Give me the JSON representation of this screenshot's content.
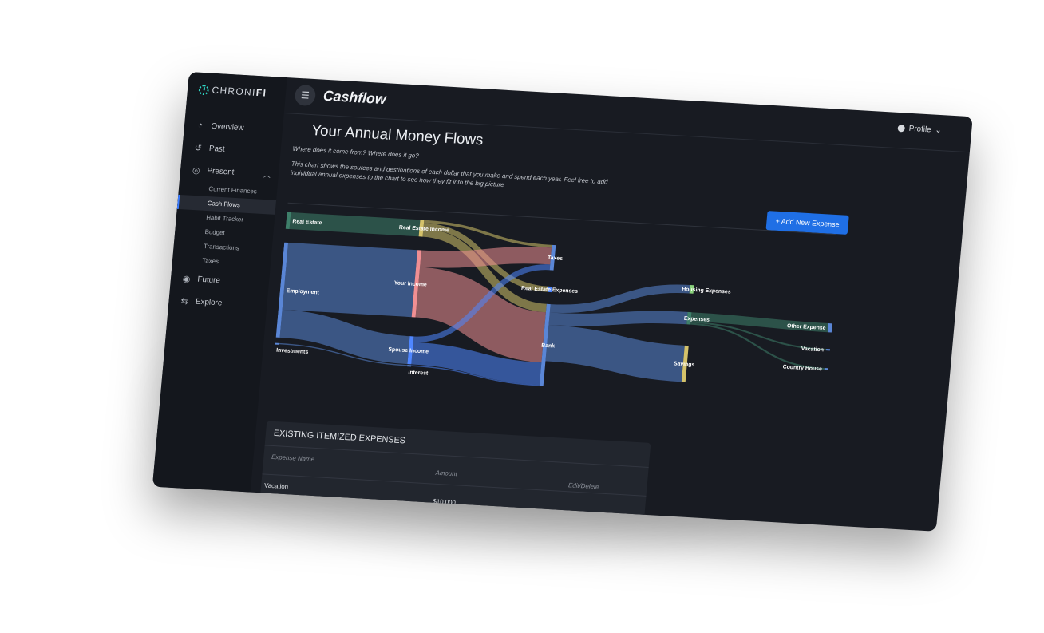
{
  "app": {
    "brand_prefix": "CHRONI",
    "brand_suffix": "FI",
    "page_title": "Cashflow",
    "profile_label": "Profile"
  },
  "sidebar": {
    "items": [
      {
        "label": "Overview",
        "icon": "gauge-icon"
      },
      {
        "label": "Past",
        "icon": "history-icon"
      },
      {
        "label": "Present",
        "icon": "location-pin-icon",
        "expanded": true,
        "subitems": [
          {
            "label": "Current Finances"
          },
          {
            "label": "Cash Flows",
            "active": true
          },
          {
            "label": "Habit Tracker"
          },
          {
            "label": "Budget"
          },
          {
            "label": "Transactions"
          },
          {
            "label": "Taxes"
          }
        ]
      },
      {
        "label": "Future",
        "icon": "rocket-icon"
      },
      {
        "label": "Explore",
        "icon": "signpost-icon"
      }
    ]
  },
  "main": {
    "heading": "Your Annual Money Flows",
    "subheading": "Where does it come from? Where does it go?",
    "description": "This chart shows the sources and destinations of each dollar that you make and spend each year. Feel free to add individual annual expenses to the chart to see how they fit into the big picture",
    "add_button": "+ Add New Expense"
  },
  "chart_data": {
    "type": "sankey",
    "nodes": [
      "Real Estate",
      "Employment",
      "Investments",
      "Real Estate Income",
      "Your Income",
      "Spouse Income",
      "Interest",
      "Taxes",
      "Real Estate Expenses",
      "Bank",
      "Housing Expenses",
      "Expenses",
      "Savings",
      "Other Expense",
      "Vacation",
      "Country House"
    ],
    "links": [
      {
        "source": "Real Estate",
        "target": "Real Estate Income",
        "value": 3
      },
      {
        "source": "Employment",
        "target": "Your Income",
        "value": 12
      },
      {
        "source": "Employment",
        "target": "Spouse Income",
        "value": 5
      },
      {
        "source": "Investments",
        "target": "Interest",
        "value": 0.2
      },
      {
        "source": "Real Estate Income",
        "target": "Taxes",
        "value": 0.5
      },
      {
        "source": "Real Estate Income",
        "target": "Real Estate Expenses",
        "value": 1
      },
      {
        "source": "Real Estate Income",
        "target": "Bank",
        "value": 1.5
      },
      {
        "source": "Your Income",
        "target": "Taxes",
        "value": 3
      },
      {
        "source": "Your Income",
        "target": "Bank",
        "value": 9
      },
      {
        "source": "Spouse Income",
        "target": "Taxes",
        "value": 1
      },
      {
        "source": "Spouse Income",
        "target": "Bank",
        "value": 4
      },
      {
        "source": "Interest",
        "target": "Bank",
        "value": 0.2
      },
      {
        "source": "Bank",
        "target": "Housing Expenses",
        "value": 1.5
      },
      {
        "source": "Bank",
        "target": "Expenses",
        "value": 2.2
      },
      {
        "source": "Bank",
        "target": "Savings",
        "value": 6.5
      },
      {
        "source": "Expenses",
        "target": "Other Expense",
        "value": 1.6
      },
      {
        "source": "Expenses",
        "target": "Vacation",
        "value": 0.3
      },
      {
        "source": "Expenses",
        "target": "Country House",
        "value": 0.3
      }
    ]
  },
  "expenses_table": {
    "title": "EXISTING ITEMIZED EXPENSES",
    "columns": [
      "Expense Name",
      "Amount",
      "Edit/Delete"
    ],
    "rows": [
      {
        "name": "Vacation",
        "amount": "$10,000"
      }
    ]
  }
}
